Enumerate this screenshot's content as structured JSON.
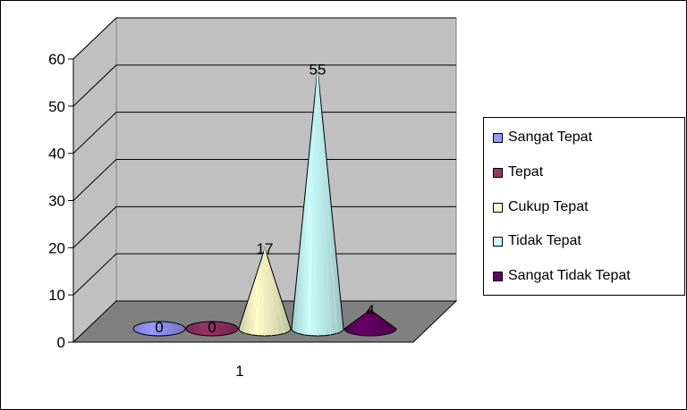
{
  "chart_data": {
    "type": "bar",
    "style": "3d-cone",
    "title": "",
    "xlabel": "",
    "ylabel": "",
    "categories": [
      "1"
    ],
    "ylim": [
      0,
      60
    ],
    "yticks": [
      "0",
      "10",
      "20",
      "30",
      "40",
      "50",
      "60"
    ],
    "grid": true,
    "legend_position": "right",
    "series": [
      {
        "name": "Sangat Tepat",
        "values": [
          0
        ],
        "label": "0",
        "color": "#9999ff"
      },
      {
        "name": "Tepat",
        "values": [
          0
        ],
        "label": "0",
        "color": "#993366"
      },
      {
        "name": "Cukup Tepat",
        "values": [
          17
        ],
        "label": "17",
        "color": "#ffffcc"
      },
      {
        "name": "Tidak Tepat",
        "values": [
          55
        ],
        "label": "55",
        "color": "#ccffff"
      },
      {
        "name": "Sangat Tidak Tepat",
        "values": [
          4
        ],
        "label": "4",
        "color": "#660066"
      }
    ]
  }
}
